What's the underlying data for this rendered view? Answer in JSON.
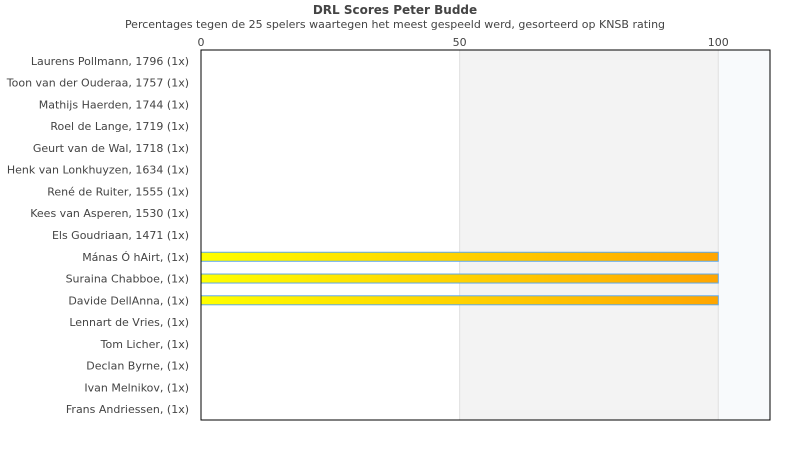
{
  "chart_data": {
    "type": "bar",
    "orientation": "horizontal",
    "title": "DRL Scores Peter Budde",
    "subtitle": "Percentages tegen de 25 spelers waartegen het meest gespeeld werd, gesorteerd op KNSB rating",
    "categories": [
      "Laurens Pollmann, 1796 (1x)",
      "Toon van der Ouderaa, 1757 (1x)",
      "Mathijs Haerden, 1744 (1x)",
      "Roel de Lange, 1719 (1x)",
      "Geurt van de Wal, 1718 (1x)",
      "Henk van Lonkhuyzen, 1634 (1x)",
      "René de Ruiter, 1555 (1x)",
      "Kees van Asperen, 1530 (1x)",
      "Els Goudriaan, 1471 (1x)",
      "Mánas Ó hAirt,  (1x)",
      "Suraina Chabboe,  (1x)",
      "Davide DellAnna,  (1x)",
      "Lennart de Vries,  (1x)",
      "Tom Licher,  (1x)",
      "Declan Byrne,  (1x)",
      "Ivan Melnikov,  (1x)",
      "Frans Andriessen,  (1x)"
    ],
    "values": [
      0,
      0,
      0,
      0,
      0,
      0,
      0,
      0,
      0,
      100,
      100,
      100,
      0,
      0,
      0,
      0,
      0
    ],
    "xticks": [
      "0",
      "50",
      "100"
    ],
    "xlim": [
      0,
      110
    ],
    "axis_position": "top",
    "bands": [
      {
        "from": 0,
        "to": 50,
        "color": "#ffffff"
      },
      {
        "from": 50,
        "to": 100,
        "color": "#f3f3f3"
      },
      {
        "from": 100,
        "to": 110,
        "color": "#f8fafc"
      }
    ],
    "bar_gradient": [
      "#ffff00",
      "#ffa500"
    ],
    "bar_border": "#5fa8e8"
  }
}
